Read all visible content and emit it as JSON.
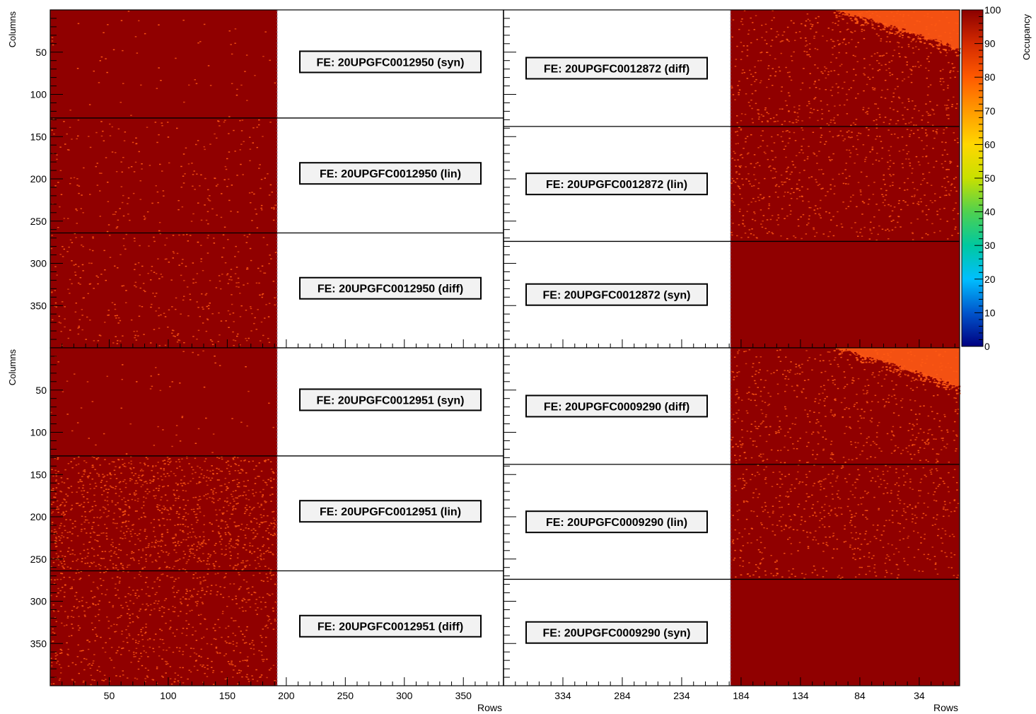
{
  "chart_data": {
    "type": "heatmap",
    "colorbar": {
      "label": "Occupancy",
      "min": 0,
      "max": 100,
      "ticks": [
        0,
        10,
        20,
        30,
        40,
        50,
        60,
        70,
        80,
        90,
        100
      ],
      "palette": [
        "#000080",
        "#0055cc",
        "#00bfff",
        "#00c8a0",
        "#4fd14f",
        "#c8e000",
        "#ffd700",
        "#ff9a00",
        "#ff5a00",
        "#d42a00",
        "#8b0000"
      ]
    },
    "colors": {
      "module_fill": "#900000",
      "module_fill_dark": "#8a0000",
      "hot_pixel": "#ff5a14",
      "low_region": "#ff5a14",
      "frame": "#000000",
      "label_bg": "#f2f2f2"
    },
    "panels": [
      {
        "row_axis": "left",
        "ylabel": "Columns",
        "ytick_labels": [
          "50",
          "100",
          "150",
          "200",
          "250",
          "300",
          "350"
        ],
        "ytick_values": [
          50,
          100,
          150,
          200,
          250,
          300,
          350
        ],
        "ylim": [
          0,
          400
        ],
        "left_xlim": [
          0,
          384
        ],
        "left_xtick_values": [
          50,
          100,
          150,
          200,
          250,
          300,
          350
        ],
        "left_xtick_labels": [
          "50",
          "100",
          "150",
          "200",
          "250",
          "300",
          "350"
        ],
        "right_xlim": [
          384,
          0
        ],
        "right_xtick_values": [
          334,
          284,
          234,
          184,
          134,
          84,
          34
        ],
        "right_xtick_labels": [
          "334",
          "284",
          "234",
          "184",
          "134",
          "84",
          "34"
        ],
        "data_row_limit": 192,
        "section_boundaries": [
          128,
          264
        ],
        "left_labels": [
          "FE: 20UPGFC0012950 (syn)",
          "FE: 20UPGFC0012950 (lin)",
          "FE: 20UPGFC0012950 (diff)"
        ],
        "right_labels": [
          "FE: 20UPGFC0012872 (diff)",
          "FE: 20UPGFC0012872 (lin)",
          "FE: 20UPGFC0012872 (syn)"
        ],
        "left_noise": [
          0.001,
          0.004,
          0.006
        ],
        "right_noise": [
          0.03,
          0.03,
          0.0
        ],
        "has_low_corner": true
      },
      {
        "row_axis": "left",
        "ylabel": "Columns",
        "ytick_labels": [
          "50",
          "100",
          "150",
          "200",
          "250",
          "300",
          "350"
        ],
        "ytick_values": [
          50,
          100,
          150,
          200,
          250,
          300,
          350
        ],
        "ylim": [
          0,
          400
        ],
        "left_xlim": [
          0,
          384
        ],
        "left_xtick_values": [
          50,
          100,
          150,
          200,
          250,
          300,
          350
        ],
        "left_xtick_labels": [
          "50",
          "100",
          "150",
          "200",
          "250",
          "300",
          "350"
        ],
        "right_xlim": [
          384,
          0
        ],
        "right_xtick_values": [
          334,
          284,
          234,
          184,
          134,
          84,
          34
        ],
        "right_xtick_labels": [
          "334",
          "284",
          "234",
          "184",
          "134",
          "84",
          "34"
        ],
        "data_row_limit": 192,
        "section_boundaries": [
          128,
          264
        ],
        "left_labels": [
          "FE: 20UPGFC0012951 (syn)",
          "FE: 20UPGFC0012951 (lin)",
          "FE: 20UPGFC0012951 (diff)"
        ],
        "right_labels": [
          "FE: 20UPGFC0009290 (diff)",
          "FE: 20UPGFC0009290 (lin)",
          "FE: 20UPGFC0009290 (syn)"
        ],
        "left_noise": [
          0.001,
          0.02,
          0.012
        ],
        "right_noise": [
          0.03,
          0.03,
          0.0
        ],
        "has_low_corner": true,
        "xlabel": "Rows"
      }
    ]
  }
}
